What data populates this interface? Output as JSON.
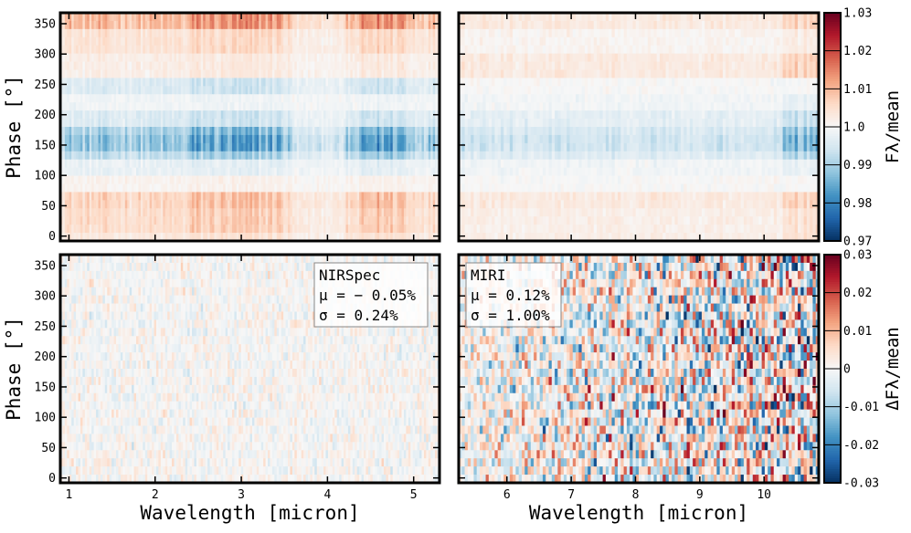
{
  "chart_data": [
    {
      "id": "nirspec-flux",
      "type": "heatmap",
      "instrument": "NIRSpec",
      "ylabel": "Phase [°]",
      "xlim": [
        0.9,
        5.3
      ],
      "ylim": [
        -8,
        368
      ],
      "xticks": [
        1,
        2,
        3,
        4,
        5
      ],
      "yticks": [
        0,
        50,
        100,
        150,
        200,
        250,
        300,
        350
      ],
      "colormap": "RdBu_r",
      "clim": [
        0.97,
        1.03
      ],
      "phase_bands": [
        {
          "phase": [
            340,
            368
          ],
          "value": 1.009
        },
        {
          "phase": [
            295,
            340
          ],
          "value": 1.004
        },
        {
          "phase": [
            265,
            295
          ],
          "value": 1.002
        },
        {
          "phase": [
            230,
            265
          ],
          "value": 0.996
        },
        {
          "phase": [
            205,
            230
          ],
          "value": 0.999
        },
        {
          "phase": [
            180,
            205
          ],
          "value": 0.996
        },
        {
          "phase": [
            160,
            180
          ],
          "value": 0.991
        },
        {
          "phase": [
            140,
            160
          ],
          "value": 0.989
        },
        {
          "phase": [
            120,
            140
          ],
          "value": 0.993
        },
        {
          "phase": [
            100,
            120
          ],
          "value": 0.998
        },
        {
          "phase": [
            75,
            100
          ],
          "value": 1.001
        },
        {
          "phase": [
            40,
            75
          ],
          "value": 1.006
        },
        {
          "phase": [
            10,
            40
          ],
          "value": 1.005
        },
        {
          "phase": [
            -8,
            10
          ],
          "value": 1.003
        }
      ]
    },
    {
      "id": "miri-flux",
      "type": "heatmap",
      "instrument": "MIRI",
      "xlim": [
        5.25,
        10.85
      ],
      "ylim": [
        -8,
        368
      ],
      "xticks": [
        6,
        7,
        8,
        9,
        10
      ],
      "yticks": [
        0,
        50,
        100,
        150,
        200,
        250,
        300,
        350
      ],
      "colormap": "RdBu_r",
      "clim": [
        0.97,
        1.03
      ],
      "phase_bands": [
        {
          "phase": [
            340,
            368
          ],
          "value": 1.003
        },
        {
          "phase": [
            295,
            340
          ],
          "value": 1.001
        },
        {
          "phase": [
            265,
            295
          ],
          "value": 1.003
        },
        {
          "phase": [
            230,
            265
          ],
          "value": 1.0
        },
        {
          "phase": [
            205,
            230
          ],
          "value": 0.999
        },
        {
          "phase": [
            180,
            205
          ],
          "value": 0.997
        },
        {
          "phase": [
            160,
            180
          ],
          "value": 0.995
        },
        {
          "phase": [
            140,
            160
          ],
          "value": 0.994
        },
        {
          "phase": [
            120,
            140
          ],
          "value": 0.996
        },
        {
          "phase": [
            100,
            120
          ],
          "value": 0.999
        },
        {
          "phase": [
            75,
            100
          ],
          "value": 1.0
        },
        {
          "phase": [
            40,
            75
          ],
          "value": 1.003
        },
        {
          "phase": [
            10,
            40
          ],
          "value": 1.002
        },
        {
          "phase": [
            -8,
            10
          ],
          "value": 1.002
        }
      ]
    },
    {
      "id": "nirspec-residual",
      "type": "heatmap",
      "instrument": "NIRSpec",
      "xlabel": "Wavelength [micron]",
      "ylabel": "Phase [°]",
      "xlim": [
        0.9,
        5.3
      ],
      "ylim": [
        -8,
        368
      ],
      "xticks": [
        1,
        2,
        3,
        4,
        5
      ],
      "yticks": [
        0,
        50,
        100,
        150,
        200,
        250,
        300,
        350
      ],
      "colormap": "RdBu_r",
      "clim": [
        -0.03,
        0.03
      ],
      "noise_sigma": 0.0024,
      "annotation": {
        "name": "NIRSpec",
        "mu": "μ = − 0.05%",
        "sigma": "σ = 0.24%"
      }
    },
    {
      "id": "miri-residual",
      "type": "heatmap",
      "instrument": "MIRI",
      "xlabel": "Wavelength [micron]",
      "xlim": [
        5.25,
        10.85
      ],
      "ylim": [
        -8,
        368
      ],
      "xticks": [
        6,
        7,
        8,
        9,
        10
      ],
      "yticks": [
        0,
        50,
        100,
        150,
        200,
        250,
        300,
        350
      ],
      "colormap": "RdBu_r",
      "clim": [
        -0.03,
        0.03
      ],
      "noise_sigma": 0.01,
      "annotation": {
        "name": "MIRI",
        "mu": "μ = 0.12%",
        "sigma": "σ = 1.00%"
      }
    }
  ],
  "colorbars": [
    {
      "id": "flux-colorbar",
      "label": "Fλ/mean",
      "range": [
        0.97,
        1.03
      ],
      "tick_labels": [
        "1.03",
        "1.02",
        "1.01",
        "1.0",
        "0.99",
        "0.98",
        "0.97"
      ],
      "tick_values": [
        1.03,
        1.02,
        1.01,
        1.0,
        0.99,
        0.98,
        0.97
      ]
    },
    {
      "id": "residual-colorbar",
      "label": "ΔFλ/mean",
      "range": [
        -0.03,
        0.03
      ],
      "tick_labels": [
        "0.03",
        "0.02",
        "0.01",
        "0",
        "-0.01",
        "-0.02",
        "-0.03"
      ],
      "tick_values": [
        0.03,
        0.02,
        0.01,
        0,
        -0.01,
        -0.02,
        -0.03
      ]
    }
  ]
}
